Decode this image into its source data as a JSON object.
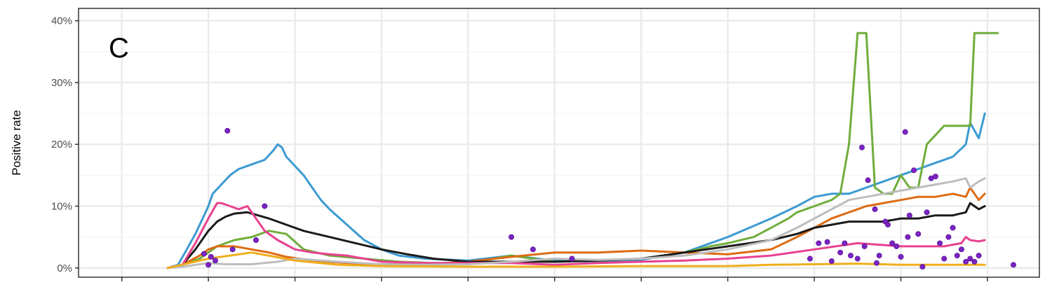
{
  "chart_data": {
    "type": "line",
    "panel_label": "C",
    "ylabel": "Positive rate",
    "ylim": [
      -1.5,
      42
    ],
    "xlim": [
      -0.5,
      10.6
    ],
    "y_ticks": [
      0,
      10,
      20,
      30,
      40
    ],
    "y_tick_labels": [
      "0%",
      "10%",
      "20%",
      "30%",
      "40%"
    ],
    "x_ticks": [
      0,
      1,
      2,
      3,
      4,
      5,
      6,
      7,
      8,
      9,
      10
    ],
    "grid": true,
    "legend": "none",
    "colors": {
      "black": "#1a1a1a",
      "blue": "#3b9ad2",
      "green": "#6fad3b",
      "orange": "#dd6b12",
      "pink": "#e7418f",
      "gray": "#bdbdbd",
      "yellow": "#efae1b",
      "points": "#7b23c4"
    },
    "series": [
      {
        "color": "blue",
        "x": [
          0.53,
          0.65,
          0.75,
          0.85,
          0.95,
          1.0,
          1.05,
          1.15,
          1.25,
          1.35,
          1.45,
          1.55,
          1.65,
          1.75,
          1.8,
          1.85,
          1.9,
          2.0,
          2.1,
          2.2,
          2.3,
          2.4,
          2.6,
          2.8,
          3.0,
          3.2,
          3.5,
          4.0,
          4.5,
          5.0,
          5.5,
          6.0,
          6.5,
          7.0,
          7.5,
          7.8,
          8.0,
          8.2,
          8.4,
          8.6,
          8.8,
          9.0,
          9.2,
          9.4,
          9.6,
          9.75,
          9.8,
          9.9,
          9.97
        ],
        "y": [
          0,
          0.5,
          3,
          5.5,
          8.5,
          10,
          12,
          13.5,
          15,
          16,
          16.5,
          17,
          17.5,
          19,
          20,
          19.5,
          18,
          16.5,
          15,
          13,
          11,
          9.5,
          7,
          4.5,
          3,
          2,
          1.5,
          1.2,
          2,
          1.2,
          1,
          1.3,
          2.5,
          5,
          8,
          10,
          11.5,
          12,
          12,
          13,
          14,
          15,
          16,
          17,
          18,
          20,
          23.5,
          21,
          25
        ]
      },
      {
        "color": "green",
        "x": [
          0.53,
          0.7,
          0.9,
          1.0,
          1.1,
          1.2,
          1.3,
          1.5,
          1.6,
          1.7,
          1.9,
          2.1,
          2.4,
          2.8,
          3.2,
          3.6,
          4.0,
          4.5,
          5.0,
          5.5,
          6.0,
          6.5,
          6.8,
          7.0,
          7.3,
          7.5,
          7.7,
          7.8,
          7.9,
          8.0,
          8.1,
          8.2,
          8.3,
          8.4,
          8.5,
          8.6,
          8.7,
          8.8,
          8.9,
          9.0,
          9.1,
          9.2,
          9.3,
          9.5,
          9.8,
          9.85,
          9.9,
          9.95,
          10.0,
          10.05,
          10.1,
          10.12
        ],
        "y": [
          0,
          0.5,
          1.5,
          2.5,
          3.5,
          4,
          4.5,
          5,
          5.5,
          6,
          5.5,
          3,
          2,
          1.5,
          1,
          0.8,
          0.8,
          2,
          1,
          1.2,
          1.5,
          2.5,
          3.5,
          4,
          5,
          6.5,
          8,
          9,
          9.5,
          10,
          10.5,
          11,
          12,
          20,
          38,
          38,
          13,
          12,
          12,
          15,
          13,
          13,
          20,
          23,
          23,
          38,
          38,
          38,
          38,
          38,
          38,
          38
        ]
      },
      {
        "color": "orange",
        "x": [
          0.53,
          0.7,
          0.9,
          1.0,
          1.1,
          1.3,
          1.5,
          1.7,
          1.9,
          2.2,
          2.6,
          3.0,
          3.5,
          4.0,
          4.5,
          5.0,
          5.5,
          6.0,
          6.5,
          7.0,
          7.5,
          7.8,
          8.0,
          8.2,
          8.4,
          8.6,
          8.8,
          9.0,
          9.2,
          9.4,
          9.6,
          9.75,
          9.8,
          9.9,
          9.97
        ],
        "y": [
          0,
          0.5,
          2,
          3,
          3.5,
          3.5,
          3,
          2.5,
          1.8,
          1.2,
          0.8,
          0.6,
          0.6,
          1,
          1.8,
          2.5,
          2.5,
          2.8,
          2.5,
          2.2,
          3,
          5,
          6.5,
          8,
          9,
          10,
          10.5,
          11,
          11.5,
          11.5,
          12,
          11.5,
          13,
          11,
          12
        ]
      },
      {
        "color": "black",
        "x": [
          0.53,
          0.7,
          0.85,
          1.0,
          1.1,
          1.2,
          1.3,
          1.45,
          1.55,
          1.7,
          1.9,
          2.1,
          2.4,
          2.7,
          3.0,
          3.3,
          3.6,
          4.0,
          4.5,
          5.0,
          5.5,
          6.0,
          6.5,
          7.0,
          7.5,
          7.8,
          8.0,
          8.2,
          8.4,
          8.6,
          8.8,
          9.0,
          9.2,
          9.4,
          9.6,
          9.75,
          9.8,
          9.9,
          9.97
        ],
        "y": [
          0,
          0.5,
          3,
          6,
          7.5,
          8.3,
          8.8,
          9,
          8.6,
          8,
          7,
          6,
          5,
          4,
          3,
          2.2,
          1.5,
          1,
          1,
          1,
          1.2,
          1.5,
          2.5,
          3.5,
          4.5,
          5.5,
          6.5,
          7,
          7.5,
          7.5,
          7.5,
          8,
          8,
          8.5,
          8.5,
          9,
          10.5,
          9.5,
          10
        ]
      },
      {
        "color": "pink",
        "x": [
          0.53,
          0.7,
          0.85,
          1.0,
          1.1,
          1.15,
          1.25,
          1.35,
          1.45,
          1.55,
          1.65,
          1.8,
          2.0,
          2.2,
          2.4,
          2.6,
          2.8,
          3.0,
          3.5,
          4.0,
          4.5,
          5.0,
          5.5,
          6.0,
          6.5,
          7.0,
          7.5,
          8.0,
          8.5,
          9.0,
          9.5,
          9.7,
          9.75,
          9.8,
          9.9,
          9.97
        ],
        "y": [
          0,
          0.5,
          4,
          8,
          10.5,
          10.5,
          10,
          9.5,
          10,
          8,
          6,
          4.5,
          3,
          2.5,
          2.2,
          2,
          1.5,
          1,
          0.8,
          0.8,
          0.8,
          0.5,
          0.8,
          1,
          1.2,
          1.5,
          2,
          3,
          4,
          3.5,
          3.5,
          4,
          5,
          4.5,
          4.3,
          4.5
        ]
      },
      {
        "color": "gray",
        "x": [
          0.53,
          0.7,
          0.9,
          1.0,
          1.2,
          1.5,
          1.8,
          2.0,
          2.5,
          3.0,
          3.5,
          4.0,
          4.5,
          5.0,
          5.5,
          6.0,
          6.5,
          7.0,
          7.5,
          7.8,
          8.0,
          8.2,
          8.4,
          8.6,
          8.8,
          9.0,
          9.2,
          9.4,
          9.6,
          9.75,
          9.8,
          9.9,
          9.97
        ],
        "y": [
          0,
          0.2,
          0.6,
          0.8,
          0.6,
          0.6,
          1,
          1.5,
          1,
          0.6,
          0.5,
          0.6,
          1,
          1.5,
          1.3,
          1.5,
          2,
          3,
          4.5,
          6.5,
          8,
          9.5,
          11,
          11.5,
          12,
          12.5,
          13,
          13.5,
          14,
          14.5,
          13,
          14,
          14.5
        ]
      },
      {
        "color": "yellow",
        "x": [
          0.53,
          1.0,
          1.5,
          2.0,
          2.5,
          3.0,
          4.0,
          5.0,
          6.0,
          7.0,
          7.5,
          8.0,
          8.5,
          9.0,
          9.5,
          9.97
        ],
        "y": [
          0,
          1.5,
          2.5,
          1.2,
          0.5,
          0.3,
          0.2,
          0.2,
          0.3,
          0.3,
          0.5,
          0.6,
          0.7,
          0.5,
          0.5,
          0.5
        ]
      }
    ],
    "points": {
      "x": [
        0.95,
        1.0,
        1.03,
        1.08,
        1.22,
        1.28,
        1.55,
        1.65,
        4.5,
        4.75,
        5.2,
        7.95,
        8.05,
        8.15,
        8.2,
        8.3,
        8.35,
        8.42,
        8.5,
        8.55,
        8.58,
        8.62,
        8.7,
        8.72,
        8.75,
        8.82,
        8.85,
        8.9,
        8.95,
        9.0,
        9.05,
        9.08,
        9.1,
        9.15,
        9.2,
        9.25,
        9.3,
        9.35,
        9.4,
        9.45,
        9.5,
        9.55,
        9.6,
        9.65,
        9.7,
        9.75,
        9.8,
        9.85,
        9.9,
        10.3
      ],
      "y": [
        2.3,
        0.5,
        1.8,
        1.2,
        22.2,
        3,
        4.5,
        10,
        5,
        3,
        1.5,
        1.5,
        4,
        4.2,
        1.1,
        2.5,
        4,
        2,
        1.5,
        19.5,
        3.5,
        14.2,
        9.5,
        0.8,
        2,
        7.5,
        7,
        4,
        3.5,
        1.8,
        22,
        5,
        8.5,
        15.8,
        5.5,
        0.2,
        9,
        14.5,
        14.8,
        4,
        1.5,
        5,
        6.5,
        2,
        3,
        1,
        1.5,
        1,
        2,
        0.5
      ]
    }
  }
}
